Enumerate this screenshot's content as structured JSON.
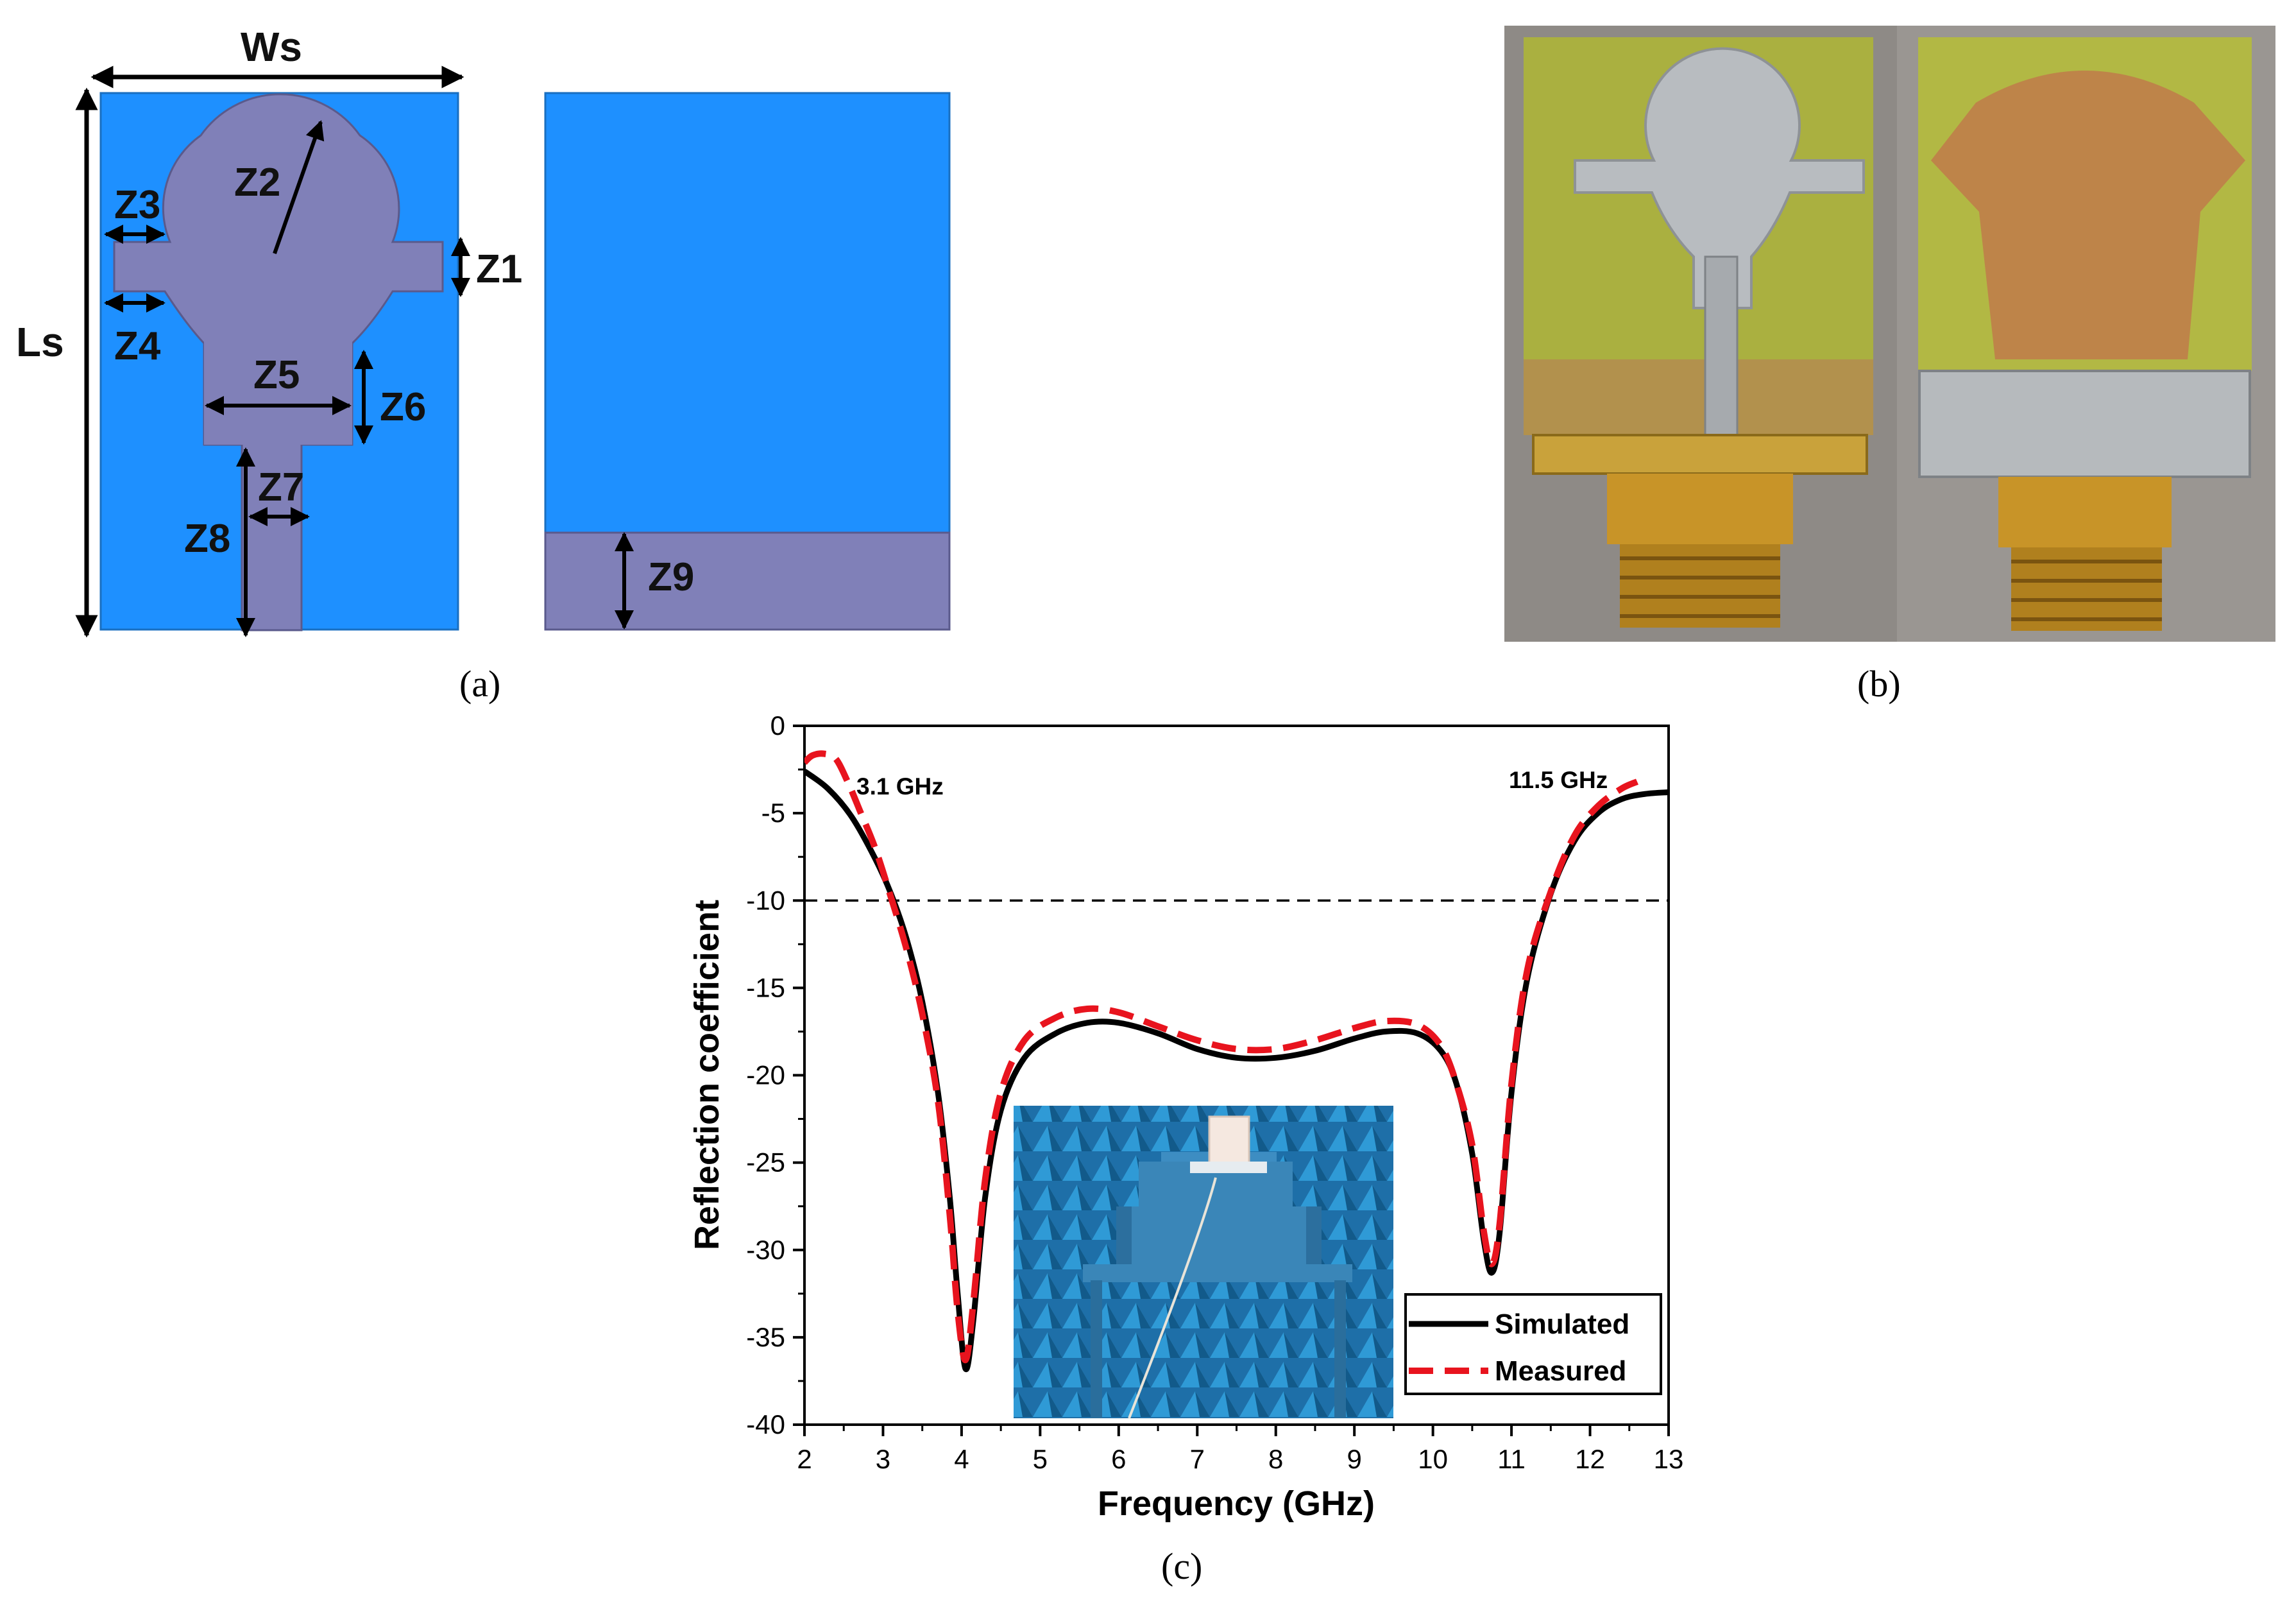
{
  "figure": {
    "captions": {
      "a": "(a)",
      "b": "(b)",
      "c": "(c)"
    }
  },
  "panel_a": {
    "labels": {
      "ws": "Ws",
      "ls": "Ls",
      "z1": "Z1",
      "z2": "Z2",
      "z3": "Z3",
      "z4": "Z4",
      "z5": "Z5",
      "z6": "Z6",
      "z7": "Z7",
      "z8": "Z8",
      "z9": "Z9"
    },
    "colors": {
      "substrate": "#1e90ff",
      "metal": "#8080b8",
      "outline": "#5a5a8c"
    }
  },
  "panel_b": {
    "photos": [
      "antenna-front-photo",
      "antenna-back-photo"
    ]
  },
  "chart_data": {
    "type": "line",
    "xlabel": "Frequency (GHz)",
    "ylabel": "Reflection coefficient",
    "xlim": [
      2,
      13
    ],
    "ylim": [
      -40,
      0
    ],
    "xticks": [
      "2",
      "3",
      "4",
      "5",
      "6",
      "7",
      "8",
      "9",
      "10",
      "11",
      "12",
      "13"
    ],
    "yticks": [
      "0",
      "-5",
      "-10",
      "-15",
      "-20",
      "-25",
      "-30",
      "-35",
      "-40"
    ],
    "reference_line": {
      "y": -10,
      "style": "dashed"
    },
    "annotations": [
      "3.1 GHz",
      "11.5 GHz"
    ],
    "legend_position": "bottom-right",
    "series": [
      {
        "name": "Simulated",
        "color": "#000000",
        "style": "solid",
        "points": [
          [
            2.0,
            -2.6
          ],
          [
            2.3,
            -3.6
          ],
          [
            2.6,
            -5.2
          ],
          [
            2.9,
            -7.6
          ],
          [
            3.1,
            -9.6
          ],
          [
            3.3,
            -12.2
          ],
          [
            3.5,
            -15.8
          ],
          [
            3.7,
            -21.0
          ],
          [
            3.85,
            -27.0
          ],
          [
            3.95,
            -32.5
          ],
          [
            4.05,
            -36.8
          ],
          [
            4.15,
            -34.0
          ],
          [
            4.3,
            -27.0
          ],
          [
            4.5,
            -22.0
          ],
          [
            4.8,
            -19.0
          ],
          [
            5.2,
            -17.6
          ],
          [
            5.6,
            -17.0
          ],
          [
            6.0,
            -17.0
          ],
          [
            6.5,
            -17.6
          ],
          [
            7.0,
            -18.5
          ],
          [
            7.5,
            -19.0
          ],
          [
            8.0,
            -19.0
          ],
          [
            8.5,
            -18.6
          ],
          [
            9.0,
            -17.9
          ],
          [
            9.4,
            -17.5
          ],
          [
            9.8,
            -17.6
          ],
          [
            10.1,
            -18.6
          ],
          [
            10.3,
            -20.5
          ],
          [
            10.5,
            -24.5
          ],
          [
            10.65,
            -29.5
          ],
          [
            10.75,
            -31.3
          ],
          [
            10.85,
            -29.0
          ],
          [
            11.0,
            -21.0
          ],
          [
            11.2,
            -14.5
          ],
          [
            11.5,
            -9.6
          ],
          [
            11.8,
            -6.6
          ],
          [
            12.1,
            -5.0
          ],
          [
            12.4,
            -4.2
          ],
          [
            12.7,
            -3.9
          ],
          [
            13.0,
            -3.8
          ]
        ]
      },
      {
        "name": "Measured",
        "color": "#e8141e",
        "style": "dashed",
        "points": [
          [
            2.0,
            -2.1
          ],
          [
            2.1,
            -1.7
          ],
          [
            2.25,
            -1.6
          ],
          [
            2.4,
            -1.9
          ],
          [
            2.55,
            -3.2
          ],
          [
            2.7,
            -4.8
          ],
          [
            2.9,
            -7.0
          ],
          [
            3.1,
            -9.8
          ],
          [
            3.3,
            -12.8
          ],
          [
            3.5,
            -16.5
          ],
          [
            3.7,
            -21.5
          ],
          [
            3.85,
            -28.0
          ],
          [
            3.95,
            -33.5
          ],
          [
            4.05,
            -36.3
          ],
          [
            4.15,
            -33.0
          ],
          [
            4.3,
            -26.0
          ],
          [
            4.5,
            -21.0
          ],
          [
            4.8,
            -18.0
          ],
          [
            5.2,
            -16.7
          ],
          [
            5.6,
            -16.2
          ],
          [
            6.0,
            -16.4
          ],
          [
            6.5,
            -17.2
          ],
          [
            7.0,
            -18.0
          ],
          [
            7.5,
            -18.5
          ],
          [
            8.0,
            -18.5
          ],
          [
            8.5,
            -18.0
          ],
          [
            9.0,
            -17.3
          ],
          [
            9.4,
            -16.9
          ],
          [
            9.8,
            -17.1
          ],
          [
            10.1,
            -18.3
          ],
          [
            10.3,
            -20.5
          ],
          [
            10.5,
            -24.0
          ],
          [
            10.65,
            -29.0
          ],
          [
            10.75,
            -30.8
          ],
          [
            10.85,
            -28.5
          ],
          [
            11.0,
            -20.5
          ],
          [
            11.2,
            -14.0
          ],
          [
            11.5,
            -9.5
          ],
          [
            11.8,
            -6.3
          ],
          [
            12.1,
            -4.6
          ],
          [
            12.4,
            -3.6
          ],
          [
            12.6,
            -3.2
          ]
        ]
      }
    ],
    "inset": "anechoic-chamber-measurement-photo"
  }
}
